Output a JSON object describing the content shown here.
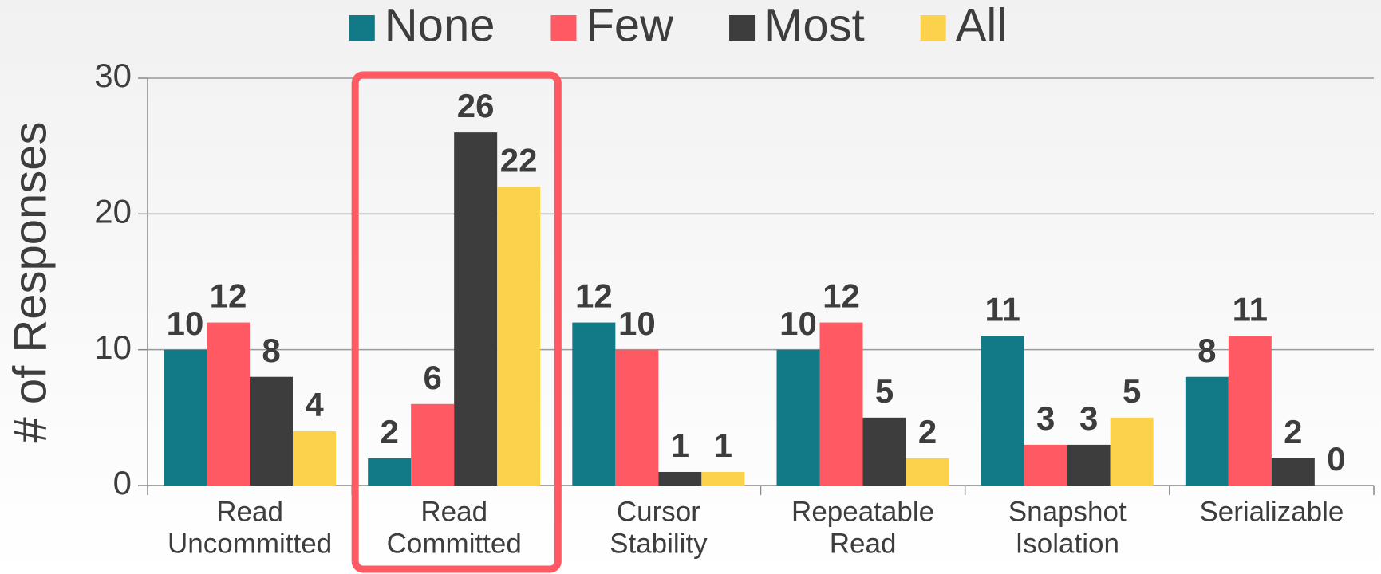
{
  "chart_data": {
    "type": "bar",
    "y_label": "# of Responses",
    "categories": [
      [
        "Read",
        "Uncommitted"
      ],
      [
        "Read",
        "Committed"
      ],
      [
        "Cursor",
        "Stability"
      ],
      [
        "Repeatable",
        "Read"
      ],
      [
        "Snapshot",
        "Isolation"
      ],
      [
        "Serializable"
      ]
    ],
    "series": [
      {
        "name": "None",
        "color": "#127a87",
        "values": [
          10,
          2,
          12,
          10,
          11,
          8
        ]
      },
      {
        "name": "Few",
        "color": "#ff5a64",
        "values": [
          12,
          6,
          10,
          12,
          3,
          11
        ]
      },
      {
        "name": "Most",
        "color": "#3d3d3d",
        "values": [
          8,
          26,
          1,
          5,
          3,
          2
        ]
      },
      {
        "name": "All",
        "color": "#fcd14c",
        "values": [
          4,
          22,
          1,
          2,
          5,
          0
        ]
      }
    ],
    "ylim": [
      0,
      30
    ],
    "yticks": [
      0,
      10,
      20,
      30
    ],
    "grid": true,
    "legend": "top"
  }
}
